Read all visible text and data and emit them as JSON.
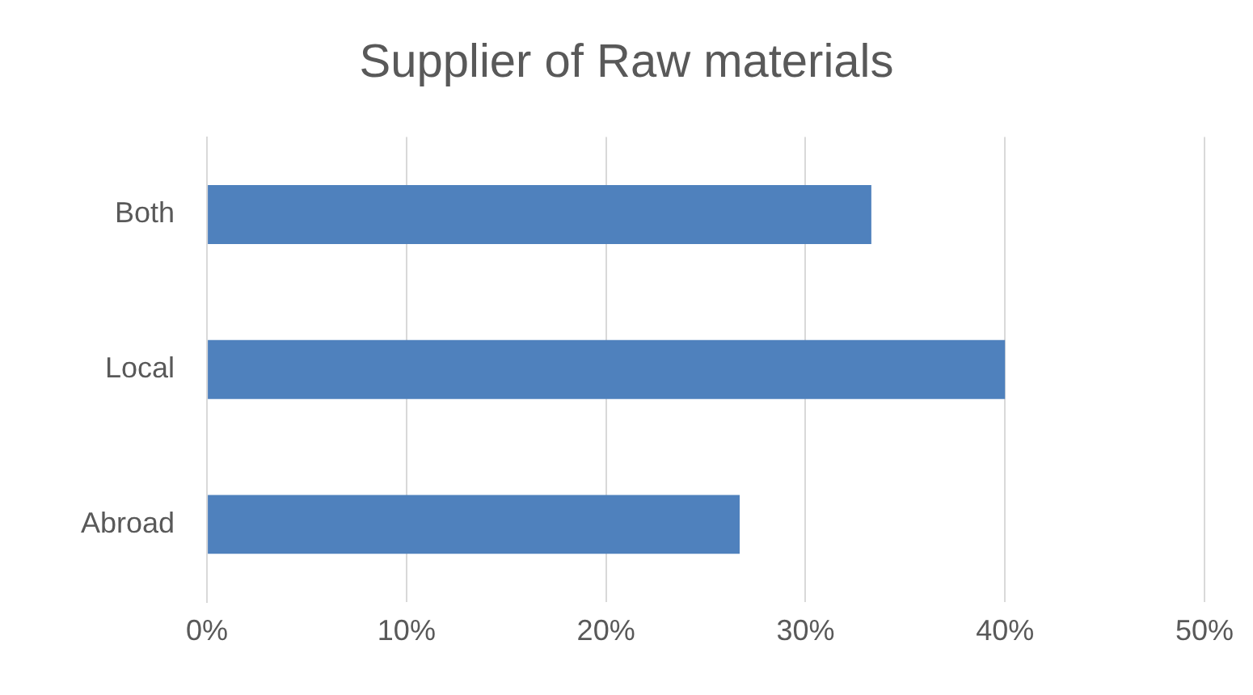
{
  "chart_data": {
    "type": "bar",
    "orientation": "horizontal",
    "title": "Supplier of Raw materials",
    "categories": [
      "Both",
      "Local",
      "Abroad"
    ],
    "values": [
      33.3,
      40,
      26.7
    ],
    "color": "#4f81bd",
    "xlim": [
      0,
      50
    ],
    "xticks": [
      {
        "value": 0,
        "label": "0%"
      },
      {
        "value": 10,
        "label": "10%"
      },
      {
        "value": 20,
        "label": "20%"
      },
      {
        "value": 30,
        "label": "30%"
      },
      {
        "value": 40,
        "label": "40%"
      },
      {
        "value": 50,
        "label": "50%"
      }
    ],
    "grid": "x",
    "legend": false
  }
}
